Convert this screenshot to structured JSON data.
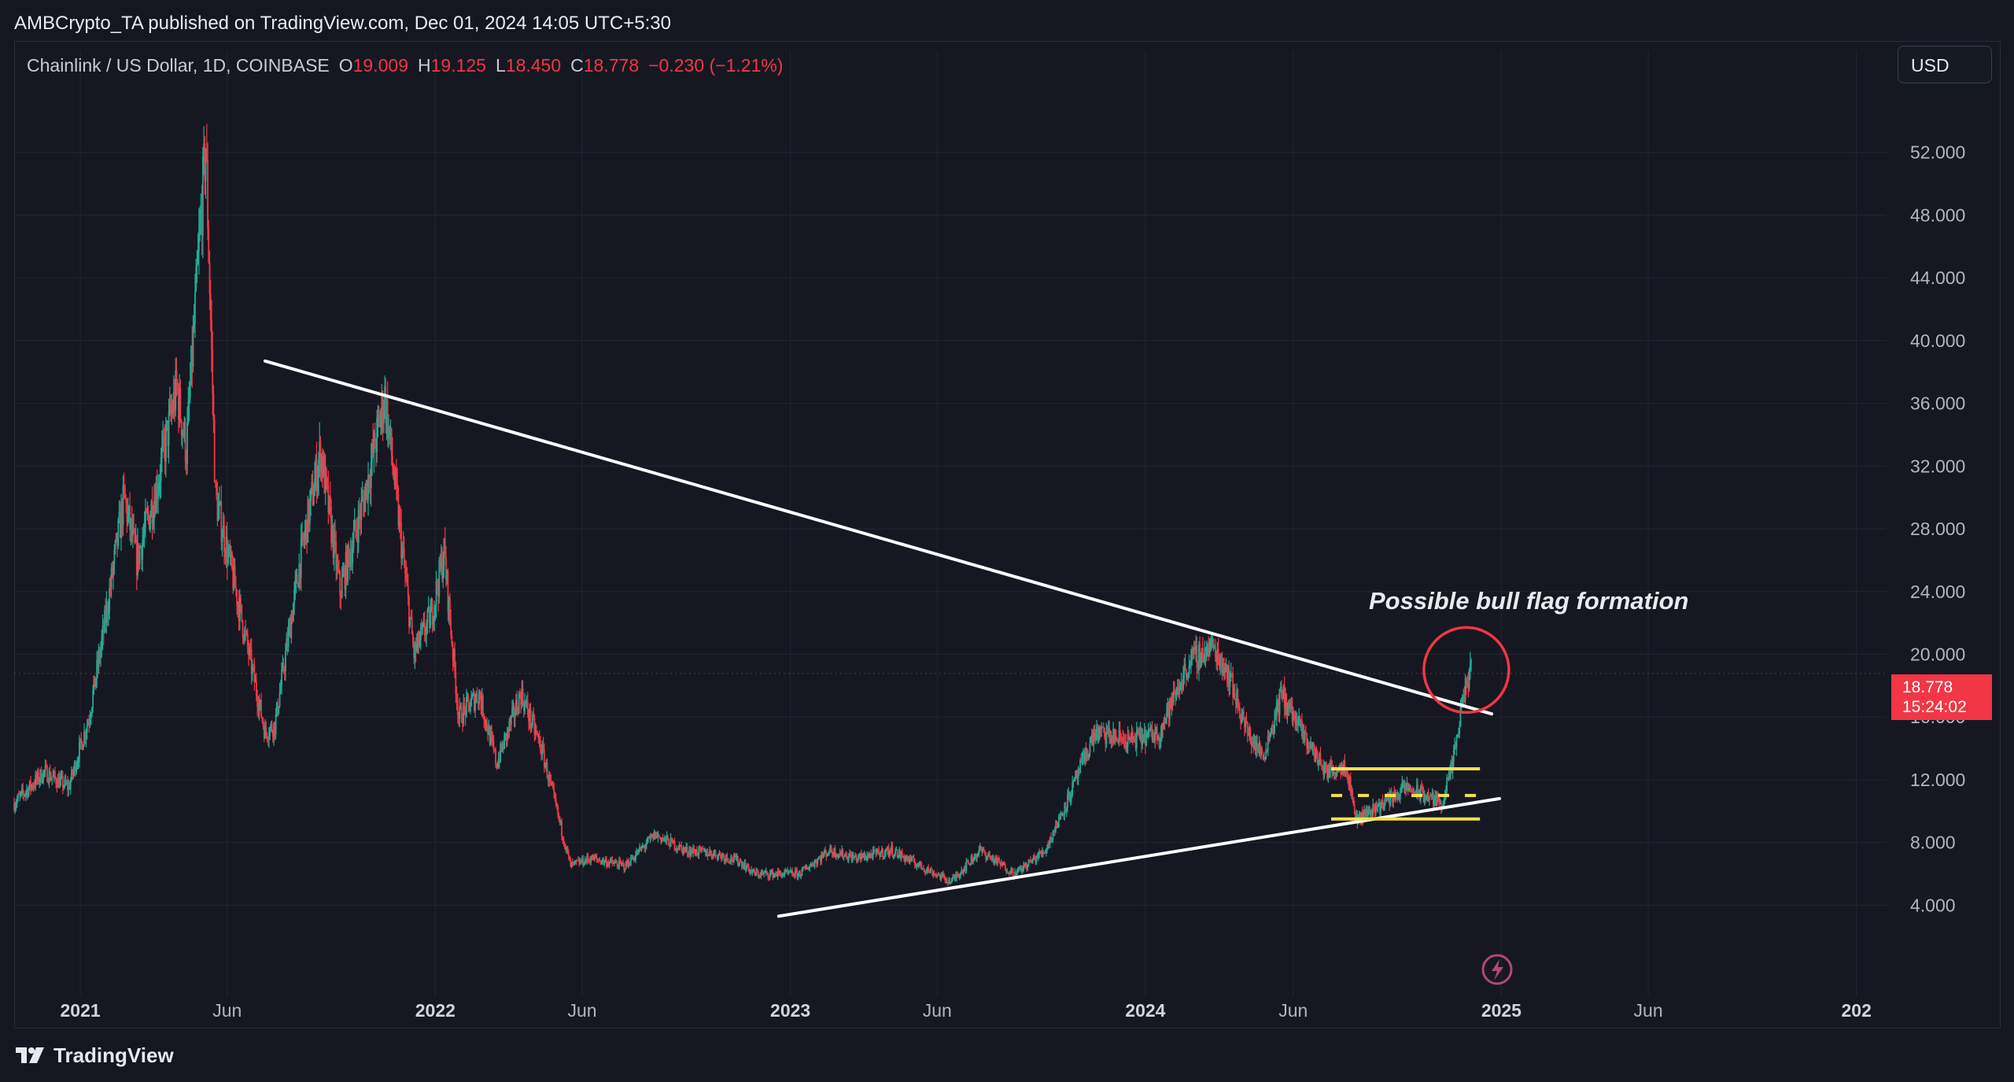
{
  "header": {
    "published_line": "AMBCrypto_TA published on TradingView.com, Dec 01, 2024 14:05 UTC+5:30"
  },
  "legend": {
    "symbol": "Chainlink / US Dollar, 1D, COINBASE",
    "o_label": "O",
    "o_value": "19.009",
    "h_label": "H",
    "h_value": "19.125",
    "l_label": "L",
    "l_value": "18.450",
    "c_label": "C",
    "c_value": "18.778",
    "change": "−0.230 (−1.21%)"
  },
  "currency_button": "USD",
  "last_price": {
    "price": "18.778",
    "countdown": "15:24:02"
  },
  "annotation": "Possible bull flag formation",
  "footer": {
    "brand": "TradingView"
  },
  "colors": {
    "background": "#151821",
    "up": "#22ab94",
    "down": "#f23645",
    "trendline": "#ffffff",
    "flag": "#f5e14b",
    "circle": "#f23645",
    "grid": "#232733"
  },
  "icons": [
    "tradingview-logo-icon",
    "flash-icon"
  ],
  "chart_data": {
    "type": "candlestick",
    "symbol": "LINK/USD",
    "interval": "1D",
    "y_axis": {
      "ticks": [
        "4.000",
        "8.000",
        "12.000",
        "16.000",
        "20.000",
        "24.000",
        "28.000",
        "32.000",
        "36.000",
        "40.000",
        "44.000",
        "48.000",
        "52.000"
      ],
      "ylim": [
        -1.4,
        56.5
      ],
      "position": "right"
    },
    "x_axis": {
      "ticks": [
        {
          "label": "2021",
          "date": "2021-01-01",
          "bold": true
        },
        {
          "label": "Jun",
          "date": "2021-06-01",
          "bold": false
        },
        {
          "label": "2022",
          "date": "2022-01-01",
          "bold": true
        },
        {
          "label": "Jun",
          "date": "2022-06-01",
          "bold": false
        },
        {
          "label": "2023",
          "date": "2023-01-01",
          "bold": true
        },
        {
          "label": "Jun",
          "date": "2023-06-01",
          "bold": false
        },
        {
          "label": "2024",
          "date": "2024-01-01",
          "bold": true
        },
        {
          "label": "Jun",
          "date": "2024-06-01",
          "bold": false
        },
        {
          "label": "2025",
          "date": "2025-01-01",
          "bold": true
        },
        {
          "label": "Jun",
          "date": "2025-06-01",
          "bold": false
        },
        {
          "label": "202",
          "date": "2026-01-01",
          "bold": true
        }
      ],
      "xlim": [
        "2020-10-25",
        "2026-02-01"
      ]
    },
    "grid": true,
    "price_path": [
      {
        "date": "2020-10-25",
        "price": 10.5
      },
      {
        "date": "2020-11-25",
        "price": 12.5
      },
      {
        "date": "2020-12-20",
        "price": 11.5
      },
      {
        "date": "2021-01-10",
        "price": 16.0
      },
      {
        "date": "2021-01-25",
        "price": 21.5
      },
      {
        "date": "2021-02-15",
        "price": 30.0
      },
      {
        "date": "2021-02-28",
        "price": 26.0
      },
      {
        "date": "2021-03-20",
        "price": 30.5
      },
      {
        "date": "2021-04-10",
        "price": 37.0
      },
      {
        "date": "2021-04-20",
        "price": 33.0
      },
      {
        "date": "2021-05-01",
        "price": 44.0
      },
      {
        "date": "2021-05-10",
        "price": 52.5
      },
      {
        "date": "2021-05-20",
        "price": 30.0
      },
      {
        "date": "2021-06-10",
        "price": 24.0
      },
      {
        "date": "2021-07-10",
        "price": 15.0
      },
      {
        "date": "2021-07-20",
        "price": 15.5
      },
      {
        "date": "2021-08-15",
        "price": 26.0
      },
      {
        "date": "2021-09-05",
        "price": 33.0
      },
      {
        "date": "2021-09-25",
        "price": 24.0
      },
      {
        "date": "2021-10-20",
        "price": 30.0
      },
      {
        "date": "2021-11-10",
        "price": 36.5
      },
      {
        "date": "2021-12-10",
        "price": 20.0
      },
      {
        "date": "2021-12-28",
        "price": 22.5
      },
      {
        "date": "2022-01-10",
        "price": 26.5
      },
      {
        "date": "2022-01-25",
        "price": 16.0
      },
      {
        "date": "2022-02-15",
        "price": 17.5
      },
      {
        "date": "2022-03-05",
        "price": 13.0
      },
      {
        "date": "2022-03-30",
        "price": 17.5
      },
      {
        "date": "2022-04-20",
        "price": 14.0
      },
      {
        "date": "2022-05-10",
        "price": 9.0
      },
      {
        "date": "2022-05-20",
        "price": 6.5
      },
      {
        "date": "2022-06-10",
        "price": 7.0
      },
      {
        "date": "2022-07-15",
        "price": 6.5
      },
      {
        "date": "2022-08-15",
        "price": 8.5
      },
      {
        "date": "2022-09-15",
        "price": 7.5
      },
      {
        "date": "2022-10-15",
        "price": 7.3
      },
      {
        "date": "2022-11-10",
        "price": 6.8
      },
      {
        "date": "2022-11-25",
        "price": 6.0
      },
      {
        "date": "2023-01-10",
        "price": 6.0
      },
      {
        "date": "2023-02-10",
        "price": 7.5
      },
      {
        "date": "2023-03-10",
        "price": 7.0
      },
      {
        "date": "2023-04-15",
        "price": 7.5
      },
      {
        "date": "2023-05-15",
        "price": 6.5
      },
      {
        "date": "2023-06-15",
        "price": 5.5
      },
      {
        "date": "2023-07-15",
        "price": 7.5
      },
      {
        "date": "2023-08-20",
        "price": 6.0
      },
      {
        "date": "2023-09-20",
        "price": 7.5
      },
      {
        "date": "2023-10-15",
        "price": 11.0
      },
      {
        "date": "2023-11-10",
        "price": 15.0
      },
      {
        "date": "2023-12-15",
        "price": 14.5
      },
      {
        "date": "2024-01-15",
        "price": 15.0
      },
      {
        "date": "2024-02-15",
        "price": 19.5
      },
      {
        "date": "2024-03-10",
        "price": 20.5
      },
      {
        "date": "2024-03-25",
        "price": 19.0
      },
      {
        "date": "2024-04-15",
        "price": 15.0
      },
      {
        "date": "2024-05-01",
        "price": 13.5
      },
      {
        "date": "2024-05-20",
        "price": 17.5
      },
      {
        "date": "2024-06-10",
        "price": 15.0
      },
      {
        "date": "2024-07-05",
        "price": 12.5
      },
      {
        "date": "2024-07-25",
        "price": 13.0
      },
      {
        "date": "2024-08-05",
        "price": 9.5
      },
      {
        "date": "2024-09-01",
        "price": 10.5
      },
      {
        "date": "2024-09-25",
        "price": 11.5
      },
      {
        "date": "2024-10-15",
        "price": 11.0
      },
      {
        "date": "2024-11-01",
        "price": 10.5
      },
      {
        "date": "2024-11-12",
        "price": 13.0
      },
      {
        "date": "2024-11-25",
        "price": 18.0
      },
      {
        "date": "2024-12-01",
        "price": 18.778
      }
    ],
    "trendlines": [
      {
        "name": "descending-resistance",
        "from": {
          "date": "2021-07-10",
          "price": 38.7
        },
        "to": {
          "date": "2024-12-22",
          "price": 16.2
        }
      },
      {
        "name": "ascending-support",
        "from": {
          "date": "2022-12-20",
          "price": 3.3
        },
        "to": {
          "date": "2024-12-30",
          "price": 10.8
        }
      }
    ],
    "flag_lines": [
      {
        "from": {
          "date": "2024-07-10",
          "price": 12.7
        },
        "to": {
          "date": "2024-12-10",
          "price": 12.7
        },
        "style": "solid"
      },
      {
        "from": {
          "date": "2024-07-10",
          "price": 11.0
        },
        "to": {
          "date": "2024-12-10",
          "price": 11.0
        },
        "style": "dashed"
      },
      {
        "from": {
          "date": "2024-07-10",
          "price": 9.5
        },
        "to": {
          "date": "2024-12-10",
          "price": 9.5
        },
        "style": "solid"
      }
    ],
    "highlight_circle": {
      "date": "2024-11-26",
      "price": 19.0
    }
  }
}
